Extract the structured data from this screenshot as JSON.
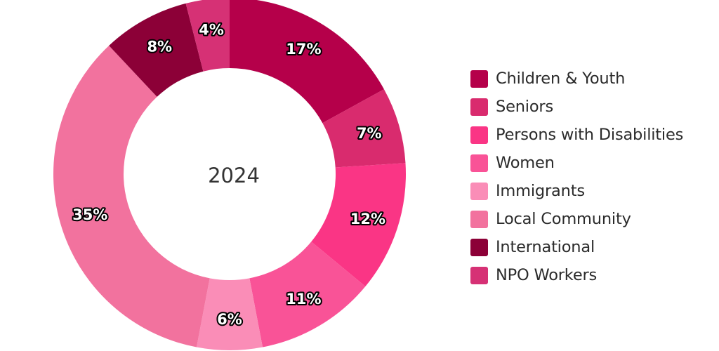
{
  "chart_data": {
    "type": "pie",
    "center_label": "2024",
    "categories": [
      "Children & Youth",
      "Seniors",
      "Persons with Disabilities",
      "Women",
      "Immigrants",
      "Local Community",
      "International",
      "NPO Workers"
    ],
    "values": [
      17,
      7,
      12,
      11,
      6,
      35,
      8,
      4
    ],
    "value_labels": [
      "17%",
      "7%",
      "12%",
      "11%",
      "6%",
      "35%",
      "8%",
      "4%"
    ],
    "colors": [
      "#b5004a",
      "#d92b6e",
      "#fa3585",
      "#f95397",
      "#fa8db7",
      "#f2729e",
      "#8c0037",
      "#d63175"
    ],
    "legend_position": "right"
  }
}
